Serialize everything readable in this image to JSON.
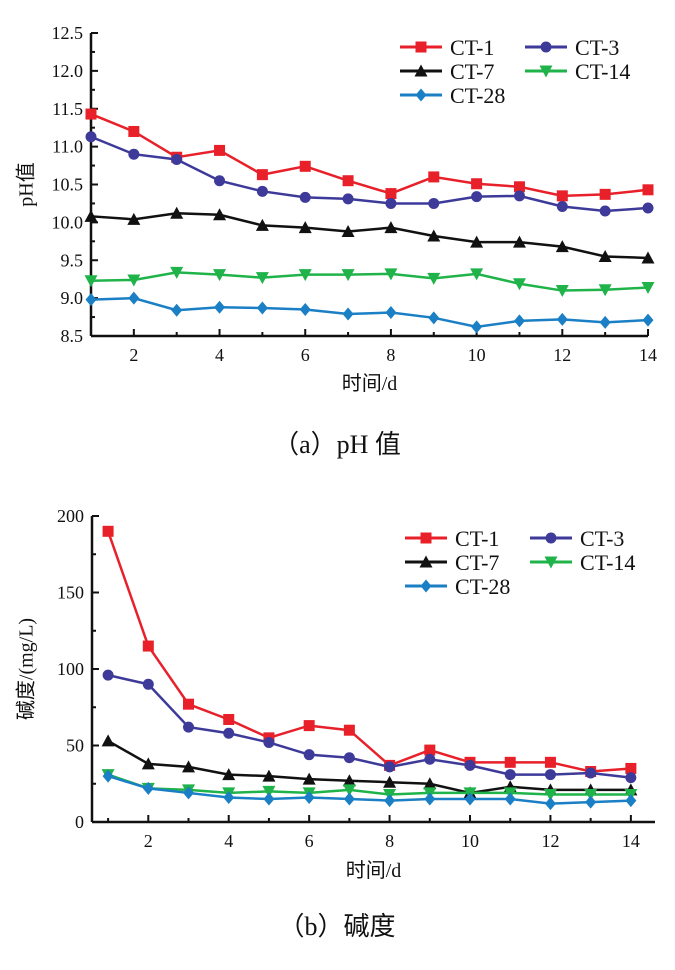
{
  "chart_data": [
    {
      "type": "line",
      "caption": "（a）pH 值",
      "xlabel": "时间/d",
      "ylabel": "pH值",
      "xlim": [
        1,
        14
      ],
      "ylim": [
        8.5,
        12.5
      ],
      "yticks": [
        8.5,
        9.0,
        9.5,
        10.0,
        10.5,
        11.0,
        11.5,
        12.0,
        12.5
      ],
      "xticks": [
        2,
        4,
        6,
        8,
        10,
        12,
        14
      ],
      "legend": "top-right",
      "grid": false,
      "x": [
        1,
        2,
        3,
        4,
        5,
        6,
        7,
        8,
        9,
        10,
        11,
        12,
        13,
        14
      ],
      "series": [
        {
          "name": "CT-1",
          "color": "#e8202a",
          "marker": "square",
          "values": [
            11.43,
            11.2,
            10.86,
            10.95,
            10.63,
            10.74,
            10.55,
            10.38,
            10.6,
            10.51,
            10.47,
            10.35,
            10.37,
            10.43
          ]
        },
        {
          "name": "CT-3",
          "color": "#3d3a9a",
          "marker": "circle",
          "values": [
            11.13,
            10.9,
            10.83,
            10.55,
            10.41,
            10.33,
            10.31,
            10.25,
            10.25,
            10.34,
            10.35,
            10.21,
            10.15,
            10.19
          ]
        },
        {
          "name": "CT-7",
          "color": "#111111",
          "marker": "triangle-up",
          "values": [
            10.08,
            10.04,
            10.12,
            10.1,
            9.96,
            9.93,
            9.88,
            9.93,
            9.82,
            9.74,
            9.74,
            9.68,
            9.55,
            9.53
          ]
        },
        {
          "name": "CT-14",
          "color": "#1fb34a",
          "marker": "triangle-down",
          "values": [
            9.23,
            9.24,
            9.34,
            9.31,
            9.27,
            9.31,
            9.31,
            9.32,
            9.26,
            9.32,
            9.19,
            9.1,
            9.11,
            9.14
          ]
        },
        {
          "name": "CT-28",
          "color": "#1a7fc4",
          "marker": "diamond",
          "values": [
            8.98,
            9.0,
            8.84,
            8.88,
            8.87,
            8.85,
            8.79,
            8.81,
            8.74,
            8.62,
            8.7,
            8.72,
            8.68,
            8.71
          ]
        }
      ]
    },
    {
      "type": "line",
      "caption": "（b）碱度",
      "xlabel": "时间/d",
      "ylabel": "碱度/(mg/L)",
      "xlim": [
        0.6,
        14.6
      ],
      "ylim": [
        0,
        200
      ],
      "yticks": [
        0,
        50,
        100,
        150,
        200
      ],
      "xticks": [
        2,
        4,
        6,
        8,
        10,
        12,
        14
      ],
      "legend": "top-right",
      "grid": false,
      "x": [
        1,
        2,
        3,
        4,
        5,
        6,
        7,
        8,
        9,
        10,
        11,
        12,
        13,
        14
      ],
      "series": [
        {
          "name": "CT-1",
          "color": "#e8202a",
          "marker": "square",
          "values": [
            190,
            115,
            77,
            67,
            55,
            63,
            60,
            37,
            47,
            39,
            39,
            39,
            33,
            35
          ]
        },
        {
          "name": "CT-3",
          "color": "#3d3a9a",
          "marker": "circle",
          "values": [
            96,
            90,
            62,
            58,
            52,
            44,
            42,
            36,
            41,
            37,
            31,
            31,
            32,
            29
          ]
        },
        {
          "name": "CT-7",
          "color": "#111111",
          "marker": "triangle-up",
          "values": [
            53,
            38,
            36,
            31,
            30,
            28,
            27,
            26,
            25,
            19,
            23,
            21,
            21,
            21
          ]
        },
        {
          "name": "CT-14",
          "color": "#1fb34a",
          "marker": "triangle-down",
          "values": [
            31,
            22,
            21,
            19,
            20,
            19,
            21,
            18,
            19,
            19,
            19,
            18,
            18,
            18
          ]
        },
        {
          "name": "CT-28",
          "color": "#1a7fc4",
          "marker": "diamond",
          "values": [
            30,
            22,
            19,
            16,
            15,
            16,
            15,
            14,
            15,
            15,
            15,
            12,
            13,
            14
          ]
        }
      ]
    }
  ]
}
